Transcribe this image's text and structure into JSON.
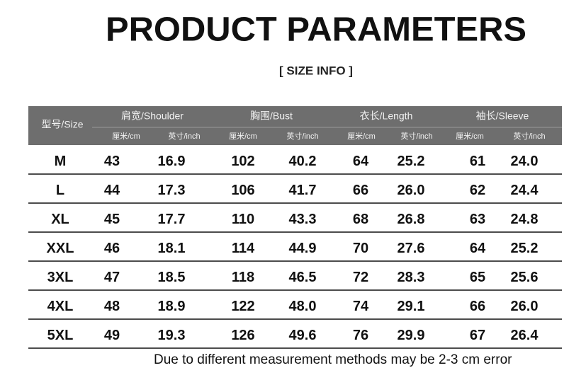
{
  "header": {
    "title": "PRODUCT PARAMETERS",
    "subtitle": "[ SIZE INFO ]"
  },
  "table": {
    "size_header": "型号/Size",
    "groups": [
      "肩宽/Shoulder",
      "胸围/Bust",
      "衣长/Length",
      "袖长/Sleeve"
    ],
    "units": [
      "厘米/cm",
      "英寸/inch",
      "厘米/cm",
      "英寸/inch",
      "厘米/cm",
      "英寸/inch",
      "厘米/cm",
      "英寸/inch"
    ],
    "rows": [
      [
        "M",
        "43",
        "16.9",
        "102",
        "40.2",
        "64",
        "25.2",
        "61",
        "24.0"
      ],
      [
        "L",
        "44",
        "17.3",
        "106",
        "41.7",
        "66",
        "26.0",
        "62",
        "24.4"
      ],
      [
        "XL",
        "45",
        "17.7",
        "110",
        "43.3",
        "68",
        "26.8",
        "63",
        "24.8"
      ],
      [
        "XXL",
        "46",
        "18.1",
        "114",
        "44.9",
        "70",
        "27.6",
        "64",
        "25.2"
      ],
      [
        "3XL",
        "47",
        "18.5",
        "118",
        "46.5",
        "72",
        "28.3",
        "65",
        "25.6"
      ],
      [
        "4XL",
        "48",
        "18.9",
        "122",
        "48.0",
        "74",
        "29.1",
        "66",
        "26.0"
      ],
      [
        "5XL",
        "49",
        "19.3",
        "126",
        "49.6",
        "76",
        "29.9",
        "67",
        "26.4"
      ]
    ]
  },
  "footnote": "Due to different measurement methods may be 2-3 cm error"
}
